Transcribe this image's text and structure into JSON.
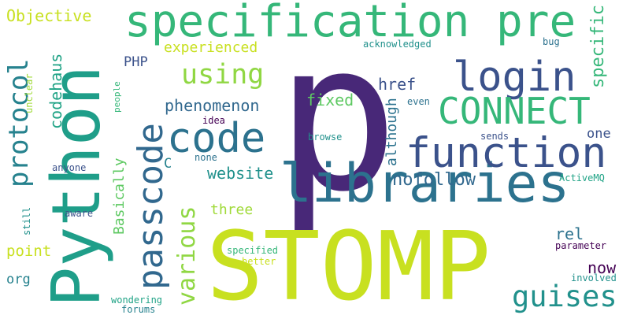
{
  "words": [
    {
      "text": "p",
      "color": "#482878"
    },
    {
      "text": "STOMP",
      "color": "#c8e020"
    },
    {
      "text": "Python",
      "color": "#1f9e89"
    },
    {
      "text": "libraries",
      "color": "#2c728e"
    },
    {
      "text": "specification pre",
      "color": "#35b779"
    },
    {
      "text": "function",
      "color": "#3b528b"
    },
    {
      "text": "code",
      "color": "#2c728e"
    },
    {
      "text": "login",
      "color": "#3b528b"
    },
    {
      "text": "CONNECT",
      "color": "#35b779"
    },
    {
      "text": "passcode",
      "color": "#31688e"
    },
    {
      "text": "protocol",
      "color": "#26828e"
    },
    {
      "text": "guises",
      "color": "#21918c"
    },
    {
      "text": "various",
      "color": "#90d743"
    },
    {
      "text": "using",
      "color": "#90d743"
    },
    {
      "text": "nofollow",
      "color": "#31688e"
    },
    {
      "text": "specific",
      "color": "#35b779"
    },
    {
      "text": "codehaus",
      "color": "#20a386"
    },
    {
      "text": "website",
      "color": "#21918c"
    },
    {
      "text": "phenomenon",
      "color": "#31688e"
    },
    {
      "text": "Objective",
      "color": "#c8e020"
    },
    {
      "text": "experienced",
      "color": "#c8e020"
    },
    {
      "text": "href",
      "color": "#3b528b"
    },
    {
      "text": "fixed",
      "color": "#5ec962"
    },
    {
      "text": "although",
      "color": "#2c728e"
    },
    {
      "text": "Basically",
      "color": "#5ec962"
    },
    {
      "text": "three",
      "color": "#a0da39"
    },
    {
      "text": "rel",
      "color": "#2c728e"
    },
    {
      "text": "now",
      "color": "#440154"
    },
    {
      "text": "one",
      "color": "#3b528b"
    },
    {
      "text": "point",
      "color": "#c8e020"
    },
    {
      "text": "PHP",
      "color": "#3b528b"
    },
    {
      "text": "org",
      "color": "#26828e"
    },
    {
      "text": "C",
      "color": "#26828e"
    },
    {
      "text": "unclear",
      "color": "#a0da39"
    },
    {
      "text": "people",
      "color": "#35b779"
    },
    {
      "text": "idea",
      "color": "#440154"
    },
    {
      "text": "none",
      "color": "#2c728e"
    },
    {
      "text": "browse",
      "color": "#21918c"
    },
    {
      "text": "sends",
      "color": "#3b528b"
    },
    {
      "text": "acknowledged",
      "color": "#21918c"
    },
    {
      "text": "bug",
      "color": "#2c728e"
    },
    {
      "text": "even",
      "color": "#2c728e"
    },
    {
      "text": "ActiveMQ",
      "color": "#20a386"
    },
    {
      "text": "anyone",
      "color": "#3b528b"
    },
    {
      "text": "aware",
      "color": "#3b528b"
    },
    {
      "text": "still",
      "color": "#21918c"
    },
    {
      "text": "specified",
      "color": "#35b779"
    },
    {
      "text": "better",
      "color": "#c8e020"
    },
    {
      "text": "parameter",
      "color": "#440154"
    },
    {
      "text": "involved",
      "color": "#21918c"
    },
    {
      "text": "wondering",
      "color": "#20a386"
    },
    {
      "text": "forums",
      "color": "#26828e"
    }
  ]
}
